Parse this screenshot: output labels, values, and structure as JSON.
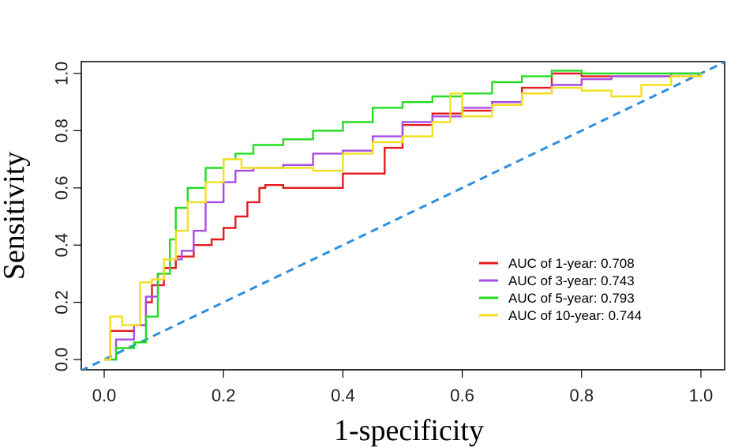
{
  "chart_data": {
    "type": "line",
    "title": "",
    "xlabel": "1-specificity",
    "ylabel": "Sensitivity",
    "xlim": [
      0,
      1
    ],
    "ylim": [
      0,
      1
    ],
    "x_ticks": [
      "0.0",
      "0.2",
      "0.4",
      "0.6",
      "0.8",
      "1.0"
    ],
    "y_ticks": [
      "0.0",
      "0.2",
      "0.4",
      "0.6",
      "0.8",
      "1.0"
    ],
    "grid": false,
    "legend_position": "bottom-right",
    "reference_line": {
      "color": "#2E8FE0",
      "dash": "dashed",
      "x": [
        0,
        1
      ],
      "y": [
        0,
        1
      ]
    },
    "series": [
      {
        "name": "AUC of 1-year: 0.708",
        "color": "#E41A1C",
        "x": [
          0,
          0.01,
          0.01,
          0.05,
          0.07,
          0.08,
          0.1,
          0.12,
          0.15,
          0.18,
          0.2,
          0.22,
          0.24,
          0.26,
          0.27,
          0.3,
          0.35,
          0.4,
          0.45,
          0.47,
          0.5,
          0.55,
          0.6,
          0.65,
          0.7,
          0.75,
          0.8,
          0.9,
          1.0
        ],
        "y": [
          0,
          0.05,
          0.1,
          0.12,
          0.2,
          0.26,
          0.32,
          0.36,
          0.4,
          0.42,
          0.46,
          0.5,
          0.55,
          0.6,
          0.61,
          0.6,
          0.6,
          0.65,
          0.65,
          0.74,
          0.82,
          0.86,
          0.87,
          0.9,
          0.95,
          1.0,
          0.99,
          0.99,
          1.0
        ]
      },
      {
        "name": "AUC of 3-year: 0.743",
        "color": "#A64DE0",
        "x": [
          0,
          0.02,
          0.05,
          0.07,
          0.09,
          0.11,
          0.13,
          0.15,
          0.17,
          0.2,
          0.22,
          0.25,
          0.3,
          0.35,
          0.4,
          0.45,
          0.5,
          0.55,
          0.6,
          0.65,
          0.7,
          0.75,
          0.8,
          0.85,
          0.9,
          0.95,
          1.0
        ],
        "y": [
          0,
          0.07,
          0.12,
          0.22,
          0.3,
          0.35,
          0.38,
          0.45,
          0.55,
          0.62,
          0.66,
          0.67,
          0.68,
          0.72,
          0.73,
          0.78,
          0.83,
          0.85,
          0.88,
          0.9,
          0.93,
          0.96,
          0.98,
          0.99,
          0.99,
          1.0,
          1.0
        ]
      },
      {
        "name": "AUC of 5-year: 0.793",
        "color": "#22DD22",
        "x": [
          0,
          0.02,
          0.05,
          0.07,
          0.09,
          0.11,
          0.12,
          0.14,
          0.17,
          0.2,
          0.22,
          0.25,
          0.3,
          0.35,
          0.4,
          0.45,
          0.5,
          0.55,
          0.6,
          0.65,
          0.7,
          0.75,
          0.8,
          0.85,
          0.9,
          0.95,
          1.0
        ],
        "y": [
          0,
          0.04,
          0.06,
          0.15,
          0.3,
          0.42,
          0.53,
          0.6,
          0.67,
          0.7,
          0.72,
          0.75,
          0.77,
          0.8,
          0.83,
          0.88,
          0.9,
          0.92,
          0.93,
          0.97,
          0.99,
          1.01,
          1.0,
          1.0,
          1.0,
          1.0,
          1.0
        ]
      },
      {
        "name": "AUC of 10-year: 0.744",
        "color": "#F2E01E",
        "x": [
          0,
          0.01,
          0.03,
          0.06,
          0.08,
          0.1,
          0.12,
          0.14,
          0.17,
          0.2,
          0.23,
          0.27,
          0.3,
          0.35,
          0.4,
          0.45,
          0.5,
          0.55,
          0.58,
          0.6,
          0.65,
          0.7,
          0.75,
          0.8,
          0.85,
          0.9,
          0.95,
          1.0
        ],
        "y": [
          0,
          0.15,
          0.12,
          0.27,
          0.28,
          0.35,
          0.45,
          0.55,
          0.62,
          0.7,
          0.67,
          0.67,
          0.67,
          0.66,
          0.72,
          0.76,
          0.78,
          0.83,
          0.93,
          0.85,
          0.89,
          0.93,
          0.95,
          0.94,
          0.92,
          0.96,
          0.99,
          1.0
        ]
      }
    ]
  }
}
